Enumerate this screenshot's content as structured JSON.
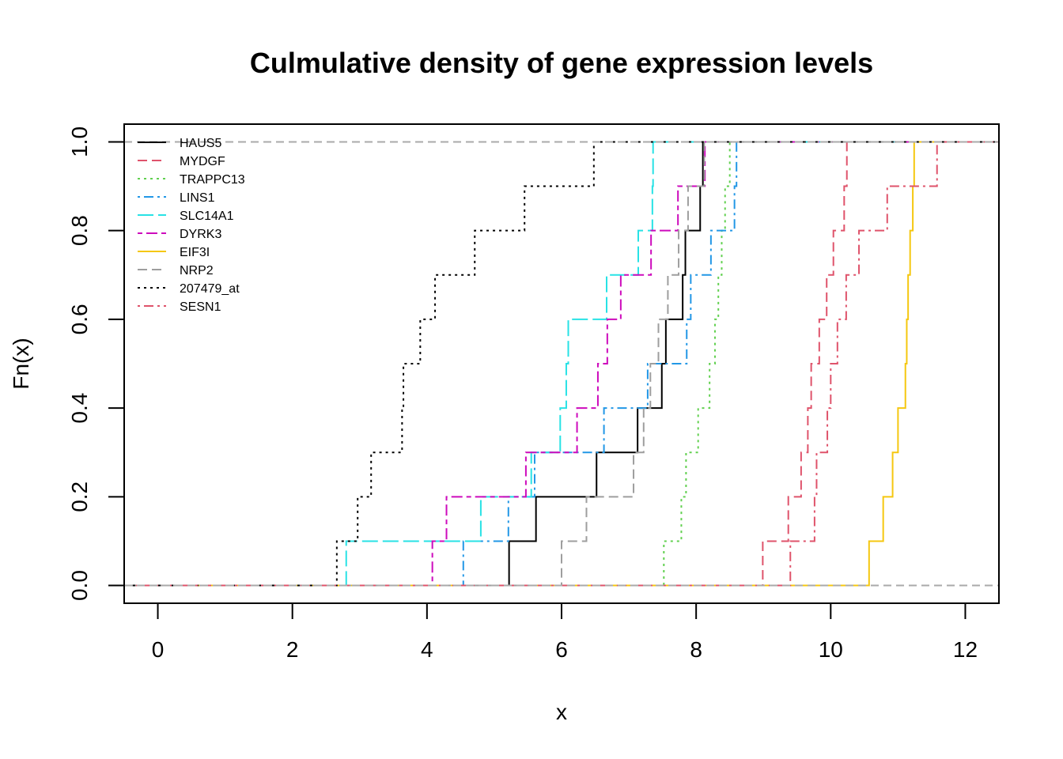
{
  "chart_data": {
    "type": "line",
    "subtype": "step-ecdf",
    "title": "Culmulative density of gene expression levels",
    "xlabel": "x",
    "ylabel": "Fn(x)",
    "xlim": [
      -0.5,
      12.5
    ],
    "ylim": [
      -0.04,
      1.04
    ],
    "xticks": [
      0,
      2,
      4,
      6,
      8,
      10,
      12
    ],
    "yticks": [
      0.0,
      0.2,
      0.4,
      0.6,
      0.8,
      1.0
    ],
    "xtick_labels": [
      "0",
      "2",
      "4",
      "6",
      "8",
      "10",
      "12"
    ],
    "ytick_labels": [
      "0.0",
      "0.2",
      "0.4",
      "0.6",
      "0.8",
      "1.0"
    ],
    "legend_position": "top-left",
    "reference_lines": [
      0,
      1
    ],
    "series": [
      {
        "name": "HAUS5",
        "color": "#000000",
        "dash": "solid",
        "x": [
          5.22,
          5.62,
          6.52,
          7.13,
          7.49,
          7.55,
          7.8,
          7.84,
          8.06,
          8.1
        ]
      },
      {
        "name": "MYDGF",
        "color": "#DF536B",
        "dash": "dashed",
        "x": [
          8.99,
          9.37,
          9.56,
          9.66,
          9.71,
          9.83,
          9.94,
          10.04,
          10.2,
          10.24
        ]
      },
      {
        "name": "TRAPPC13",
        "color": "#61D04F",
        "dash": "dotted",
        "x": [
          7.52,
          7.78,
          7.85,
          8.03,
          8.2,
          8.28,
          8.33,
          8.38,
          8.43,
          8.5
        ]
      },
      {
        "name": "LINS1",
        "color": "#2297E6",
        "dash": "dotdash",
        "x": [
          4.54,
          5.21,
          5.6,
          6.63,
          7.28,
          7.86,
          7.92,
          8.22,
          8.57,
          8.6
        ]
      },
      {
        "name": "SLC14A1",
        "color": "#28E2E5",
        "dash": "longdash",
        "x": [
          2.8,
          4.8,
          5.55,
          5.98,
          6.07,
          6.1,
          6.67,
          7.14,
          7.35,
          7.36
        ]
      },
      {
        "name": "DYRK3",
        "color": "#CD0BBC",
        "dash": "twodash",
        "x": [
          4.08,
          4.29,
          5.47,
          6.23,
          6.54,
          6.68,
          6.88,
          7.33,
          7.73,
          8.13
        ]
      },
      {
        "name": "EIF3I",
        "color": "#F5C710",
        "dash": "solid",
        "x": [
          10.57,
          10.78,
          10.92,
          11.0,
          11.11,
          11.13,
          11.15,
          11.18,
          11.22,
          11.24
        ]
      },
      {
        "name": "NRP2",
        "color": "#9E9E9E",
        "dash": "dashed",
        "x": [
          6.0,
          6.37,
          7.07,
          7.22,
          7.32,
          7.44,
          7.58,
          7.74,
          7.88,
          8.12
        ]
      },
      {
        "name": "207479_at",
        "color": "#000000",
        "dash": "dotted",
        "x": [
          2.66,
          2.97,
          3.17,
          3.63,
          3.65,
          3.9,
          4.12,
          4.71,
          5.45,
          6.48
        ]
      },
      {
        "name": "SESN1",
        "color": "#DF536B",
        "dash": "dotdash",
        "x": [
          9.4,
          9.76,
          9.79,
          9.95,
          10.0,
          10.1,
          10.23,
          10.42,
          10.84,
          11.58
        ]
      }
    ]
  }
}
